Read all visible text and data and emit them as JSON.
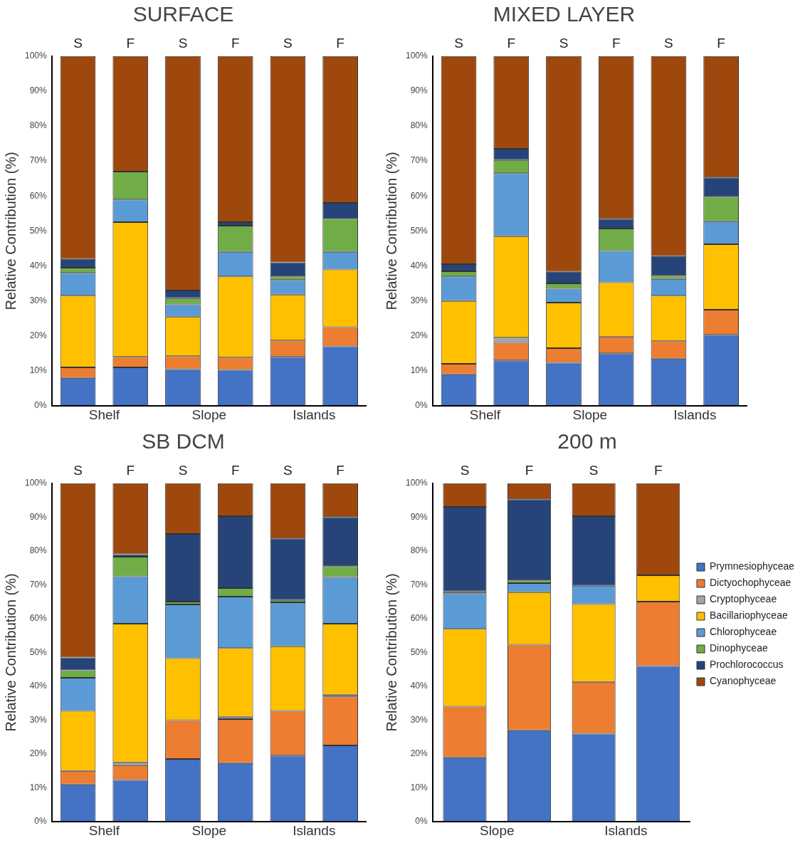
{
  "chart_data": [
    {
      "type": "bar",
      "title": "SURFACE",
      "ylabel": "Relative Contribution (%)",
      "stacked": true,
      "categories": [
        "S",
        "F",
        "S",
        "F",
        "S",
        "F"
      ],
      "annotations": [
        "Shelf",
        "Slope",
        "Islands"
      ],
      "ylim": [
        0,
        100
      ],
      "yticks": [
        {
          "value": 0,
          "label": "0%"
        },
        {
          "value": 10,
          "label": "10%"
        },
        {
          "value": 20,
          "label": "20%"
        },
        {
          "value": 30,
          "label": "30%"
        },
        {
          "value": 40,
          "label": "40%"
        },
        {
          "value": 50,
          "label": "50%"
        },
        {
          "value": 60,
          "label": "60%"
        },
        {
          "value": 70,
          "label": "70%"
        },
        {
          "value": 80,
          "label": "80%"
        },
        {
          "value": 90,
          "label": "90%"
        },
        {
          "value": 100,
          "label": "100%"
        }
      ],
      "series": [
        {
          "color": "#4472c4",
          "values": [
            8,
            11,
            10.5,
            10.3,
            14,
            17
          ]
        },
        {
          "color": "#ed7d31",
          "values": [
            3,
            3,
            3.7,
            3.5,
            4.7,
            5.5
          ]
        },
        {
          "color": "#ffc000",
          "values": [
            20.5,
            38.5,
            11.3,
            23.2,
            13.1,
            16.5
          ]
        },
        {
          "color": "#5b9bd5",
          "values": [
            6.5,
            6.5,
            3.5,
            7,
            4.2,
            5
          ]
        },
        {
          "color": "#70ad47",
          "values": [
            1.5,
            8,
            1.8,
            7.5,
            1,
            9.5
          ]
        },
        {
          "color": "#264478",
          "values": [
            2.5,
            null,
            2.2,
            1,
            4,
            4.5
          ]
        },
        {
          "color": "#9e480e",
          "values": [
            58,
            33,
            67,
            47.5,
            59,
            42
          ]
        }
      ]
    },
    {
      "type": "bar",
      "title": "MIXED LAYER",
      "ylabel": "Relative Contribution (%)",
      "stacked": true,
      "categories": [
        "S",
        "F",
        "S",
        "F",
        "S",
        "F"
      ],
      "annotations": [
        "Shelf",
        "Slope",
        "Islands"
      ],
      "ylim": [
        0,
        100
      ],
      "yticks": [
        {
          "value": 0,
          "label": "0%"
        },
        {
          "value": 10,
          "label": "10%"
        },
        {
          "value": 20,
          "label": "20%"
        },
        {
          "value": 30,
          "label": "30%"
        },
        {
          "value": 40,
          "label": "40%"
        },
        {
          "value": 50,
          "label": "50%"
        },
        {
          "value": 60,
          "label": "60%"
        },
        {
          "value": 70,
          "label": "70%"
        },
        {
          "value": 80,
          "label": "80%"
        },
        {
          "value": 90,
          "label": "90%"
        },
        {
          "value": 100,
          "label": "100%"
        }
      ],
      "series": [
        {
          "color": "#4472c4",
          "values": [
            9,
            13,
            12.3,
            15,
            13.5,
            20.3
          ]
        },
        {
          "color": "#ed7d31",
          "values": [
            3,
            5,
            4.2,
            4.8,
            5,
            7.2
          ]
        },
        {
          "color": "#a5a5a5",
          "values": [
            null,
            1.5,
            null,
            null,
            null,
            null
          ]
        },
        {
          "color": "#ffc000",
          "values": [
            18,
            29,
            13,
            15.5,
            13,
            18.7
          ]
        },
        {
          "color": "#5b9bd5",
          "values": [
            7,
            18,
            4,
            9,
            4.8,
            6.6
          ]
        },
        {
          "color": "#70ad47",
          "values": [
            1.5,
            3.8,
            1.5,
            6.4,
            0.9,
            7
          ]
        },
        {
          "color": "#264478",
          "values": [
            2,
            3.2,
            3.3,
            2.8,
            5.6,
            5.5
          ]
        },
        {
          "color": "#9e480e",
          "values": [
            59.5,
            26.5,
            61.7,
            46.5,
            57.2,
            34.7
          ]
        }
      ]
    },
    {
      "type": "bar",
      "title": "SB DCM",
      "ylabel": "Relative Contribution (%)",
      "stacked": true,
      "categories": [
        "S",
        "F",
        "S",
        "F",
        "S",
        "F"
      ],
      "annotations": [
        "Shelf",
        "Slope",
        "Islands"
      ],
      "ylim": [
        0,
        100
      ],
      "yticks": [
        {
          "value": 0,
          "label": "0%"
        },
        {
          "value": 10,
          "label": "10%"
        },
        {
          "value": 20,
          "label": "20%"
        },
        {
          "value": 30,
          "label": "30%"
        },
        {
          "value": 40,
          "label": "40%"
        },
        {
          "value": 50,
          "label": "50%"
        },
        {
          "value": 60,
          "label": "60%"
        },
        {
          "value": 70,
          "label": "70%"
        },
        {
          "value": 80,
          "label": "80%"
        },
        {
          "value": 90,
          "label": "90%"
        },
        {
          "value": 100,
          "label": "100%"
        }
      ],
      "series": [
        {
          "color": "#4472c4",
          "values": [
            11,
            12.3,
            18.5,
            17.3,
            19.5,
            22.5
          ]
        },
        {
          "color": "#ed7d31",
          "values": [
            4,
            4.4,
            11.5,
            13,
            13.2,
            14.5
          ]
        },
        {
          "color": "#a5a5a5",
          "values": [
            null,
            0.8,
            null,
            0.7,
            null,
            0.5
          ]
        },
        {
          "color": "#ffc000",
          "values": [
            17.7,
            41,
            18.3,
            20.3,
            19.1,
            21
          ]
        },
        {
          "color": "#5b9bd5",
          "values": [
            9.8,
            14,
            15.9,
            15.2,
            13,
            13.8
          ]
        },
        {
          "color": "#70ad47",
          "values": [
            2.2,
            5.8,
            0.8,
            2.5,
            0.7,
            3.2
          ]
        },
        {
          "color": "#264478",
          "values": [
            3.8,
            0.7,
            20,
            21.3,
            18.2,
            14.5
          ]
        },
        {
          "color": "#9e480e",
          "values": [
            51.5,
            21,
            15,
            9.7,
            16.3,
            10
          ]
        }
      ]
    },
    {
      "type": "bar",
      "title": "200 m",
      "ylabel": "Relative Contribution (%)",
      "stacked": true,
      "legend": "right",
      "categories": [
        "S",
        "F",
        "S",
        "F"
      ],
      "annotations": [
        "Slope",
        "Islands"
      ],
      "ylim": [
        0,
        100
      ],
      "yticks": [
        {
          "value": 0,
          "label": "0%"
        },
        {
          "value": 10,
          "label": "10%"
        },
        {
          "value": 20,
          "label": "20%"
        },
        {
          "value": 30,
          "label": "30%"
        },
        {
          "value": 40,
          "label": "40%"
        },
        {
          "value": 50,
          "label": "50%"
        },
        {
          "value": 60,
          "label": "60%"
        },
        {
          "value": 70,
          "label": "70%"
        },
        {
          "value": 80,
          "label": "80%"
        },
        {
          "value": 90,
          "label": "90%"
        },
        {
          "value": 100,
          "label": "100%"
        }
      ],
      "series": [
        {
          "name": "Prymnesiophyceae",
          "color": "#4472c4",
          "values": [
            19,
            27,
            26,
            46
          ]
        },
        {
          "name": "Dictyochophyceae",
          "color": "#ed7d31",
          "values": [
            15,
            25.3,
            15.3,
            19
          ]
        },
        {
          "name": "Cryptophyceae",
          "color": "#a5a5a5",
          "values": [
            null,
            null,
            null,
            null
          ]
        },
        {
          "name": "Bacillariophyceae",
          "color": "#ffc000",
          "values": [
            23,
            15.5,
            23,
            7.8
          ]
        },
        {
          "name": "Chlorophyceae",
          "color": "#5b9bd5",
          "values": [
            10.5,
            2.7,
            5.4,
            null
          ]
        },
        {
          "name": "Dinophyceae",
          "color": "#70ad47",
          "values": [
            0.5,
            0.8,
            null,
            null
          ]
        },
        {
          "name": "Prochlorococcus",
          "color": "#264478",
          "values": [
            25,
            24,
            20.6,
            null
          ]
        },
        {
          "name": "Cyanophyceae",
          "color": "#9e480e",
          "values": [
            7,
            4.7,
            9.7,
            27.2
          ]
        }
      ]
    }
  ]
}
